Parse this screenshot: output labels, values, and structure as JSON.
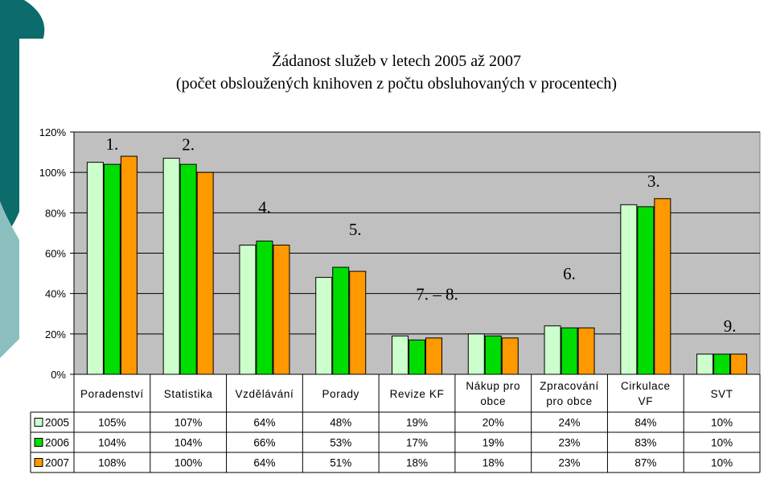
{
  "chart_data": {
    "type": "bar",
    "title": "Žádanost služeb v letech 2005 až 2007",
    "subtitle": "(počet obsloužených knihoven z počtu obsluhovaných v procentech)",
    "ylim": [
      0,
      120
    ],
    "yticks": [
      "0%",
      "20%",
      "40%",
      "60%",
      "80%",
      "100%",
      "120%"
    ],
    "grid": true,
    "legend": "data-table",
    "categories": [
      [
        "Poradenství"
      ],
      [
        "Statistika"
      ],
      [
        "Vzdělávání"
      ],
      [
        "Porady"
      ],
      [
        "Revize KF"
      ],
      [
        "Nákup pro",
        "obce"
      ],
      [
        "Zpracování",
        "pro obce"
      ],
      [
        "Cirkulace",
        "VF"
      ],
      [
        "SVT"
      ]
    ],
    "series": [
      {
        "name": "2005",
        "color": "#ccffcc",
        "values": [
          105,
          107,
          64,
          48,
          19,
          20,
          24,
          84,
          10
        ],
        "labels": [
          "105%",
          "107%",
          "64%",
          "48%",
          "19%",
          "20%",
          "24%",
          "84%",
          "10%"
        ]
      },
      {
        "name": "2006",
        "color": "#00dd00",
        "values": [
          104,
          104,
          66,
          53,
          17,
          19,
          23,
          83,
          10
        ],
        "labels": [
          "104%",
          "104%",
          "66%",
          "53%",
          "17%",
          "19%",
          "23%",
          "83%",
          "10%"
        ]
      },
      {
        "name": "2007",
        "color": "#ff9900",
        "values": [
          108,
          100,
          64,
          51,
          18,
          18,
          23,
          87,
          10
        ],
        "labels": [
          "108%",
          "100%",
          "64%",
          "51%",
          "18%",
          "18%",
          "23%",
          "87%",
          "10%"
        ]
      }
    ],
    "annotations": [
      {
        "text": "1.",
        "category": 0
      },
      {
        "text": "2.",
        "category": 1
      },
      {
        "text": "4.",
        "category": 2
      },
      {
        "text": "5.",
        "category": 3
      },
      {
        "text": "7. – 8.",
        "category": 4
      },
      {
        "text": "6.",
        "category": 6
      },
      {
        "text": "3.",
        "category": 7
      },
      {
        "text": "9.",
        "category": 8
      }
    ]
  },
  "colors": {
    "plot_area": "#c0c0c0",
    "slide_accent_dark": "#0c6b6b",
    "slide_accent_light": "#7fb7b7"
  }
}
